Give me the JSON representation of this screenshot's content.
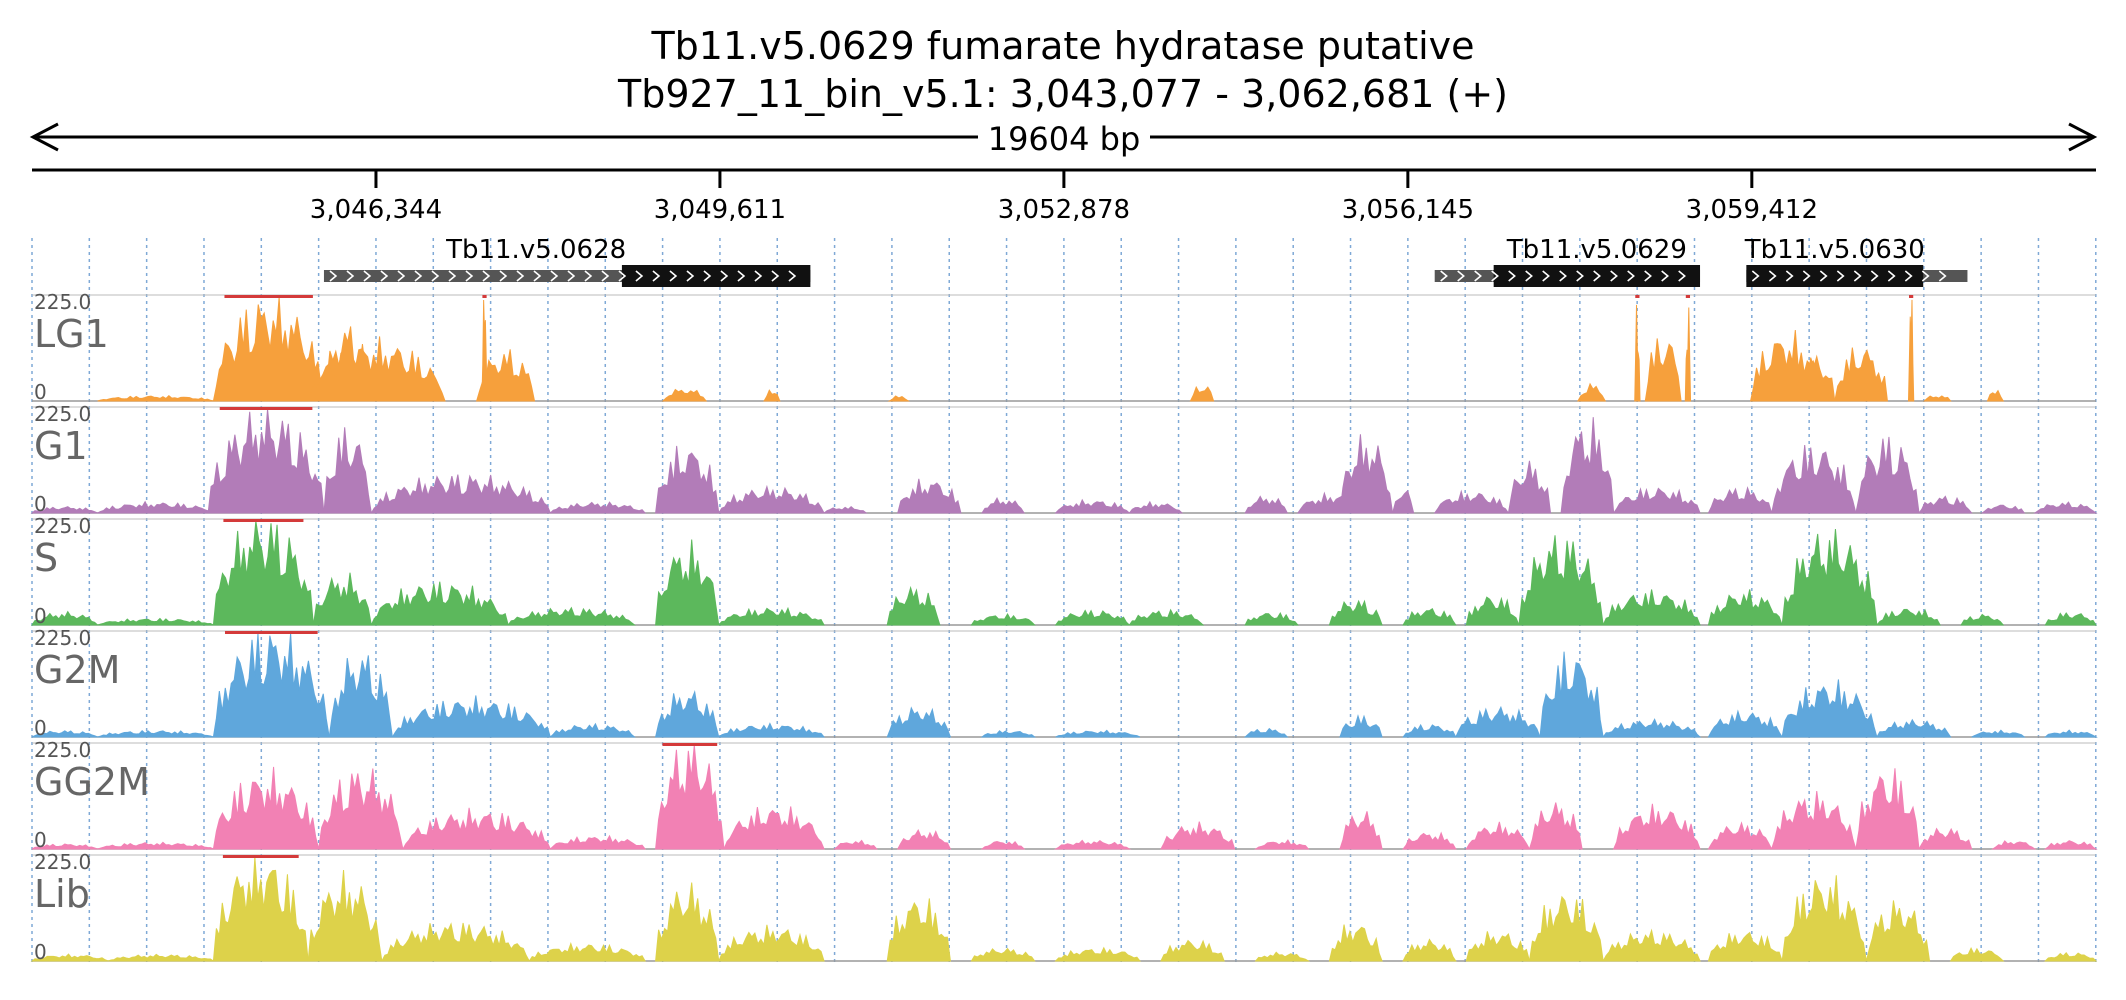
{
  "title": {
    "line1": "Tb11.v5.0629  fumarate hydratase  putative",
    "line2": "Tb927_11_bin_v5.1: 3,043,077 - 3,062,681 (+)"
  },
  "span_label": "19604 bp",
  "chart_data": {
    "type": "area",
    "title": "Tb11.v5.0629  fumarate hydratase  putative",
    "subtitle": "Tb927_11_bin_v5.1: 3,043,077 - 3,062,681 (+)",
    "xlim": [
      3043077,
      3062681
    ],
    "ylim": [
      0,
      225
    ],
    "y_tick_labels": [
      "225.0",
      "0"
    ],
    "x_ticks": [
      3046344,
      3049611,
      3052878,
      3056145,
      3059412
    ],
    "x_tick_labels": [
      "3,046,344",
      "3,049,611",
      "3,052,878",
      "3,056,145",
      "3,059,412"
    ],
    "grid": true,
    "genes": [
      {
        "name": "Tb11.v5.0628",
        "start": 3045850,
        "end": 3050470,
        "cds_start": 3048680,
        "cds_end": 3050470,
        "strand": "+"
      },
      {
        "name": "Tb11.v5.0629",
        "start": 3056400,
        "end": 3058920,
        "cds_start": 3056960,
        "cds_end": 3058920,
        "strand": "+"
      },
      {
        "name": "Tb11.v5.0630",
        "start": 3059360,
        "end": 3061460,
        "cds_start": 3059360,
        "cds_end": 3061040,
        "strand": "+"
      }
    ],
    "series": [
      {
        "name": "LG1",
        "color": "#f6a03c",
        "peaks": [
          [
            3043700,
            3044800,
            12
          ],
          [
            3044800,
            3045850,
            240
          ],
          [
            3045850,
            3046300,
            180
          ],
          [
            3045700,
            3047000,
            140
          ],
          [
            3047300,
            3047850,
            120
          ],
          [
            3047350,
            3047400,
            240
          ],
          [
            3050030,
            3050180,
            30
          ],
          [
            3049070,
            3049480,
            30
          ],
          [
            3051220,
            3051400,
            12
          ],
          [
            3054080,
            3054300,
            40
          ],
          [
            3057760,
            3058020,
            40
          ],
          [
            3058400,
            3058740,
            160
          ],
          [
            3058300,
            3058350,
            240
          ],
          [
            3058780,
            3058830,
            240
          ],
          [
            3059400,
            3060080,
            160
          ],
          [
            3059800,
            3060200,
            110
          ],
          [
            3060200,
            3060700,
            130
          ],
          [
            3060900,
            3060950,
            240
          ],
          [
            3061050,
            3061300,
            14
          ],
          [
            3061650,
            3061800,
            30
          ]
        ]
      },
      {
        "name": "G1",
        "color": "#b27cb8",
        "peaks": [
          [
            3043077,
            3043700,
            15
          ],
          [
            3043700,
            3044800,
            25
          ],
          [
            3044750,
            3045850,
            240
          ],
          [
            3045850,
            3046300,
            200
          ],
          [
            3046300,
            3048000,
            90
          ],
          [
            3048000,
            3048900,
            25
          ],
          [
            3049000,
            3049600,
            160
          ],
          [
            3049600,
            3050600,
            60
          ],
          [
            3050600,
            3051000,
            15
          ],
          [
            3051300,
            3051900,
            80
          ],
          [
            3052100,
            3052500,
            35
          ],
          [
            3052800,
            3053500,
            30
          ],
          [
            3053500,
            3054000,
            25
          ],
          [
            3054600,
            3055000,
            40
          ],
          [
            3055100,
            3055800,
            45
          ],
          [
            3055500,
            3056000,
            180
          ],
          [
            3056000,
            3056200,
            60
          ],
          [
            3056400,
            3057100,
            50
          ],
          [
            3057100,
            3057500,
            120
          ],
          [
            3057600,
            3058100,
            220
          ],
          [
            3058100,
            3058920,
            60
          ],
          [
            3059000,
            3059600,
            60
          ],
          [
            3059600,
            3060400,
            160
          ],
          [
            3060400,
            3061000,
            180
          ],
          [
            3061000,
            3061500,
            40
          ],
          [
            3061600,
            3062000,
            20
          ],
          [
            3062100,
            3062681,
            25
          ]
        ]
      },
      {
        "name": "S",
        "color": "#5cb85c",
        "peaks": [
          [
            3043077,
            3043700,
            30
          ],
          [
            3043700,
            3044800,
            15
          ],
          [
            3044800,
            3045750,
            250
          ],
          [
            3045750,
            3046300,
            120
          ],
          [
            3046300,
            3047600,
            100
          ],
          [
            3047600,
            3048800,
            40
          ],
          [
            3049000,
            3049600,
            190
          ],
          [
            3049600,
            3050600,
            40
          ],
          [
            3051200,
            3051700,
            90
          ],
          [
            3052000,
            3052600,
            25
          ],
          [
            3052800,
            3053500,
            35
          ],
          [
            3053500,
            3054200,
            35
          ],
          [
            3054600,
            3055100,
            30
          ],
          [
            3055400,
            3055900,
            60
          ],
          [
            3056100,
            3056600,
            40
          ],
          [
            3056700,
            3057200,
            70
          ],
          [
            3057200,
            3058000,
            210
          ],
          [
            3058000,
            3058920,
            80
          ],
          [
            3059000,
            3059700,
            80
          ],
          [
            3059700,
            3060600,
            220
          ],
          [
            3060600,
            3061200,
            40
          ],
          [
            3061400,
            3061800,
            25
          ],
          [
            3062200,
            3062681,
            30
          ]
        ]
      },
      {
        "name": "G2M",
        "color": "#5fa7dc",
        "peaks": [
          [
            3043077,
            3043700,
            15
          ],
          [
            3043700,
            3044800,
            15
          ],
          [
            3044800,
            3045900,
            250
          ],
          [
            3045900,
            3046500,
            200
          ],
          [
            3046500,
            3048000,
            90
          ],
          [
            3048000,
            3048800,
            30
          ],
          [
            3049000,
            3049600,
            110
          ],
          [
            3049600,
            3050600,
            30
          ],
          [
            3051200,
            3051800,
            70
          ],
          [
            3052100,
            3052600,
            15
          ],
          [
            3052800,
            3053600,
            15
          ],
          [
            3054600,
            3055000,
            20
          ],
          [
            3055500,
            3055900,
            50
          ],
          [
            3056100,
            3056600,
            30
          ],
          [
            3056600,
            3057400,
            70
          ],
          [
            3057400,
            3058000,
            200
          ],
          [
            3058000,
            3058920,
            40
          ],
          [
            3059000,
            3059700,
            60
          ],
          [
            3059700,
            3060600,
            130
          ],
          [
            3060600,
            3061300,
            40
          ],
          [
            3061500,
            3062000,
            15
          ],
          [
            3062200,
            3062681,
            15
          ]
        ]
      },
      {
        "name": "GG2M",
        "color": "#f281b4",
        "peaks": [
          [
            3043077,
            3043700,
            12
          ],
          [
            3043700,
            3044800,
            15
          ],
          [
            3044800,
            3045800,
            180
          ],
          [
            3045800,
            3046600,
            190
          ],
          [
            3046600,
            3048000,
            90
          ],
          [
            3048000,
            3048900,
            30
          ],
          [
            3049000,
            3049650,
            250
          ],
          [
            3049650,
            3050600,
            100
          ],
          [
            3050700,
            3051100,
            20
          ],
          [
            3051300,
            3051800,
            45
          ],
          [
            3052100,
            3052500,
            20
          ],
          [
            3052800,
            3053500,
            20
          ],
          [
            3053800,
            3054500,
            60
          ],
          [
            3054700,
            3055200,
            20
          ],
          [
            3055500,
            3055900,
            90
          ],
          [
            3056100,
            3056600,
            40
          ],
          [
            3056700,
            3057300,
            60
          ],
          [
            3057300,
            3057800,
            110
          ],
          [
            3058100,
            3058920,
            100
          ],
          [
            3059000,
            3059600,
            60
          ],
          [
            3059600,
            3060400,
            130
          ],
          [
            3060400,
            3061000,
            190
          ],
          [
            3061000,
            3061500,
            50
          ],
          [
            3061700,
            3062100,
            20
          ],
          [
            3062200,
            3062681,
            20
          ]
        ]
      },
      {
        "name": "Lib",
        "color": "#ddd24a",
        "peaks": [
          [
            3043077,
            3043800,
            15
          ],
          [
            3043800,
            3044800,
            15
          ],
          [
            3044800,
            3045700,
            250
          ],
          [
            3045700,
            3046400,
            200
          ],
          [
            3046400,
            3047800,
            90
          ],
          [
            3047800,
            3048900,
            40
          ],
          [
            3049000,
            3049600,
            180
          ],
          [
            3049600,
            3050600,
            80
          ],
          [
            3051200,
            3051800,
            150
          ],
          [
            3052000,
            3052600,
            30
          ],
          [
            3052800,
            3053600,
            30
          ],
          [
            3053800,
            3054400,
            50
          ],
          [
            3054700,
            3055200,
            20
          ],
          [
            3055400,
            3055900,
            90
          ],
          [
            3056100,
            3056600,
            50
          ],
          [
            3056700,
            3057300,
            70
          ],
          [
            3057300,
            3058000,
            160
          ],
          [
            3058000,
            3058920,
            70
          ],
          [
            3059000,
            3059700,
            70
          ],
          [
            3059700,
            3060500,
            200
          ],
          [
            3060500,
            3061100,
            140
          ],
          [
            3061300,
            3061800,
            30
          ],
          [
            3062200,
            3062681,
            20
          ]
        ]
      }
    ]
  }
}
